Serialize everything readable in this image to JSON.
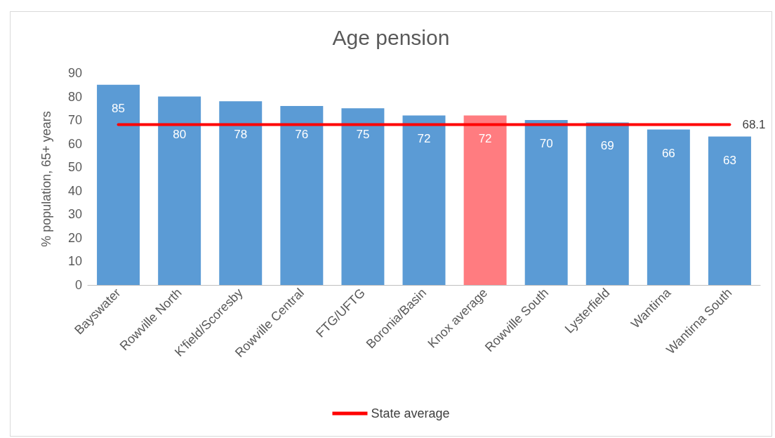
{
  "chart_data": {
    "type": "bar",
    "title": "Age pension",
    "ylabel": "% population, 65+ years",
    "categories": [
      "Bayswater",
      "Rowville North",
      "K'field/Scoresby",
      "Rowville Central",
      "FTG/UFTG",
      "Boronia/Basin",
      "Knox average",
      "Rowville South",
      "Lysterfield",
      "Wantirna",
      "Wantirna South"
    ],
    "series": [
      {
        "type": "bar",
        "colors": [
          "#5b9bd5",
          "#5b9bd5",
          "#5b9bd5",
          "#5b9bd5",
          "#5b9bd5",
          "#5b9bd5",
          "#ff7c80",
          "#5b9bd5",
          "#5b9bd5",
          "#5b9bd5",
          "#5b9bd5"
        ],
        "values": [
          85,
          80,
          78,
          76,
          75,
          72,
          72,
          70,
          69,
          66,
          63
        ]
      },
      {
        "type": "line",
        "name": "State average",
        "color": "#ff0000",
        "marker": "none",
        "values": [
          68.1,
          68.1,
          68.1,
          68.1,
          68.1,
          68.1,
          68.1,
          68.1,
          68.1,
          68.1,
          68.1
        ],
        "value_labels": [
          null,
          null,
          null,
          null,
          null,
          null,
          null,
          null,
          null,
          null,
          "68.1"
        ]
      }
    ],
    "ylim": [
      0,
      90
    ],
    "yticks": [
      0,
      10,
      20,
      30,
      40,
      50,
      60,
      70,
      80,
      90
    ],
    "grid": false,
    "legend": "bottom",
    "data_labels": true
  }
}
